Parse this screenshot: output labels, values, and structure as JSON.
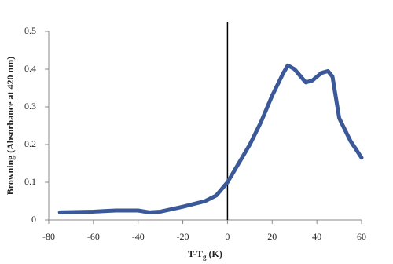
{
  "chart_data": {
    "type": "line",
    "xlabel": {
      "main": "T-T",
      "subscript": "g",
      "unit": "(K)"
    },
    "ylabel": "Browning (Absorbance at 420 nm)",
    "x": [
      -75,
      -60,
      -50,
      -40,
      -35,
      -30,
      -20,
      -10,
      -5,
      0,
      5,
      10,
      15,
      20,
      25,
      27,
      30,
      35,
      38,
      42,
      45,
      47,
      50,
      55,
      60
    ],
    "series": [
      {
        "color": "#3b5998",
        "values": [
          0.02,
          0.022,
          0.025,
          0.025,
          0.02,
          0.022,
          0.035,
          0.05,
          0.065,
          0.1,
          0.15,
          0.2,
          0.26,
          0.33,
          0.39,
          0.41,
          0.4,
          0.365,
          0.37,
          0.39,
          0.395,
          0.38,
          0.27,
          0.21,
          0.165
        ]
      }
    ],
    "xlim": [
      -80,
      60
    ],
    "xticks": [
      -80,
      -60,
      -40,
      -20,
      0,
      20,
      40,
      60
    ],
    "ylim": [
      0,
      0.5
    ],
    "yticks": [
      0,
      0.1,
      0.2,
      0.3,
      0.4,
      0.5
    ],
    "grid": false
  }
}
